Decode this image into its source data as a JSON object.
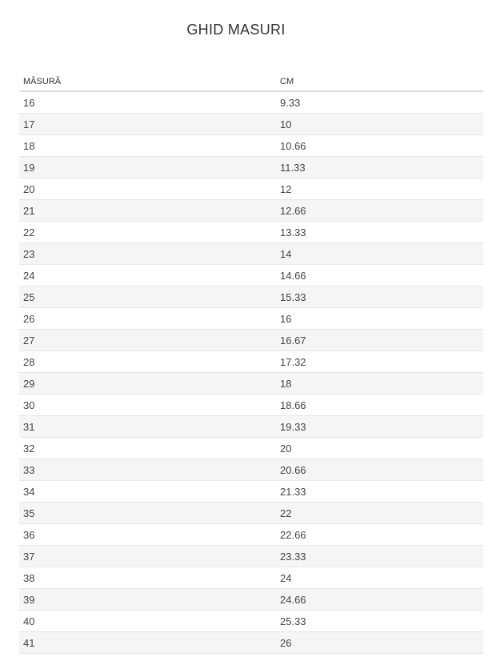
{
  "title": "GHID MASURI",
  "table": {
    "headers": [
      "MĂSURĂ",
      "CM"
    ],
    "rows": [
      [
        "16",
        "9.33"
      ],
      [
        "17",
        "10"
      ],
      [
        "18",
        "10.66"
      ],
      [
        "19",
        "11.33"
      ],
      [
        "20",
        "12"
      ],
      [
        "21",
        "12.66"
      ],
      [
        "22",
        "13.33"
      ],
      [
        "23",
        "14"
      ],
      [
        "24",
        "14.66"
      ],
      [
        "25",
        "15.33"
      ],
      [
        "26",
        "16"
      ],
      [
        "27",
        "16.67"
      ],
      [
        "28",
        "17.32"
      ],
      [
        "29",
        "18"
      ],
      [
        "30",
        "18.66"
      ],
      [
        "31",
        "19.33"
      ],
      [
        "32",
        "20"
      ],
      [
        "33",
        "20.66"
      ],
      [
        "34",
        "21.33"
      ],
      [
        "35",
        "22"
      ],
      [
        "36",
        "22.66"
      ],
      [
        "37",
        "23.33"
      ],
      [
        "38",
        "24"
      ],
      [
        "39",
        "24.66"
      ],
      [
        "40",
        "25.33"
      ],
      [
        "41",
        "26"
      ]
    ]
  }
}
